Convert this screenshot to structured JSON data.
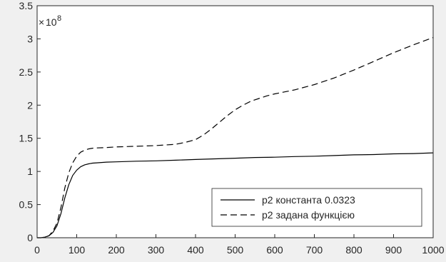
{
  "chart_data": {
    "type": "line",
    "title": "",
    "xlabel": "",
    "ylabel": "",
    "y_exponent": {
      "base": "10",
      "power": "8"
    },
    "xlim": [
      0,
      1000
    ],
    "ylim": [
      0,
      3.5
    ],
    "x_ticks": [
      0,
      100,
      200,
      300,
      400,
      500,
      600,
      700,
      800,
      900,
      1000
    ],
    "x_tick_labels": [
      "0",
      "100",
      "200",
      "300",
      "400",
      "500",
      "600",
      "700",
      "800",
      "900",
      "1000"
    ],
    "y_ticks": [
      0,
      0.5,
      1,
      1.5,
      2,
      2.5,
      3,
      3.5
    ],
    "y_tick_labels": [
      "0",
      "0.5",
      "1",
      "1.5",
      "2",
      "2.5",
      "3",
      "3.5"
    ],
    "grid": false,
    "legend_position": "bottom-right",
    "series": [
      {
        "name": "p2 константа 0.0323",
        "line_style": "solid",
        "color": "#000000",
        "x": [
          0,
          10,
          20,
          30,
          40,
          50,
          60,
          70,
          80,
          90,
          100,
          110,
          120,
          130,
          140,
          150,
          175,
          200,
          250,
          300,
          350,
          400,
          450,
          500,
          550,
          600,
          650,
          700,
          750,
          800,
          850,
          900,
          950,
          1000
        ],
        "y": [
          0,
          0.0,
          0.01,
          0.03,
          0.08,
          0.18,
          0.36,
          0.6,
          0.8,
          0.94,
          1.02,
          1.07,
          1.1,
          1.115,
          1.125,
          1.13,
          1.14,
          1.145,
          1.155,
          1.16,
          1.17,
          1.18,
          1.19,
          1.2,
          1.21,
          1.215,
          1.225,
          1.23,
          1.24,
          1.25,
          1.255,
          1.265,
          1.27,
          1.28
        ]
      },
      {
        "name": "p2 задана функцією",
        "line_style": "dashed",
        "color": "#000000",
        "x": [
          0,
          10,
          20,
          30,
          40,
          50,
          60,
          70,
          80,
          90,
          100,
          110,
          120,
          130,
          140,
          150,
          175,
          200,
          250,
          300,
          350,
          375,
          400,
          420,
          440,
          460,
          480,
          500,
          520,
          540,
          560,
          580,
          600,
          650,
          700,
          750,
          800,
          850,
          900,
          950,
          1000
        ],
        "y": [
          0,
          0.0,
          0.01,
          0.03,
          0.1,
          0.22,
          0.45,
          0.75,
          0.98,
          1.13,
          1.23,
          1.29,
          1.32,
          1.34,
          1.35,
          1.355,
          1.36,
          1.37,
          1.38,
          1.39,
          1.41,
          1.44,
          1.48,
          1.55,
          1.64,
          1.74,
          1.84,
          1.93,
          2.0,
          2.06,
          2.1,
          2.14,
          2.17,
          2.23,
          2.31,
          2.41,
          2.53,
          2.66,
          2.79,
          2.91,
          3.02
        ]
      }
    ]
  }
}
